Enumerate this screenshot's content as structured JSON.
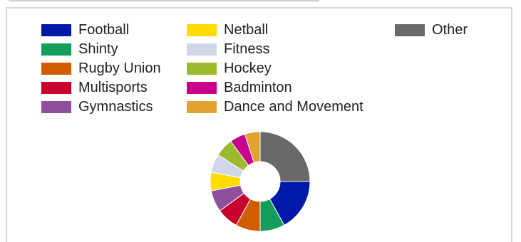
{
  "chart_data": {
    "type": "pie",
    "donut": true,
    "title": "",
    "legend_placement": "top",
    "categories": [
      "Other",
      "Football",
      "Shinty",
      "Rugby Union",
      "Multisports",
      "Gymnastics",
      "Netball",
      "Fitness",
      "Hockey",
      "Badminton",
      "Dance and Movement"
    ],
    "values": [
      25.0,
      17.0,
      8.0,
      8.0,
      7.0,
      7.0,
      6.0,
      6.0,
      6.0,
      5.0,
      5.0
    ],
    "colors": [
      "#696969",
      "#0019a8",
      "#159d5c",
      "#d25d00",
      "#c8002e",
      "#8e4f9d",
      "#ffdb00",
      "#d0d7e8",
      "#9cba2e",
      "#c8008c",
      "#e3a12f"
    ]
  },
  "legend": {
    "columns": [
      [
        {
          "label": "Football",
          "color": "#0019a8"
        },
        {
          "label": "Shinty",
          "color": "#159d5c"
        },
        {
          "label": "Rugby Union",
          "color": "#d25d00"
        },
        {
          "label": "Multisports",
          "color": "#c8002e"
        },
        {
          "label": "Gymnastics",
          "color": "#8e4f9d"
        }
      ],
      [
        {
          "label": "Netball",
          "color": "#ffdb00"
        },
        {
          "label": "Fitness",
          "color": "#d0d7e8"
        },
        {
          "label": "Hockey",
          "color": "#9cba2e"
        },
        {
          "label": "Badminton",
          "color": "#c8008c"
        },
        {
          "label": "Dance and Movement",
          "color": "#e3a12f"
        }
      ],
      [
        {
          "label": "Other",
          "color": "#696969"
        }
      ]
    ]
  }
}
